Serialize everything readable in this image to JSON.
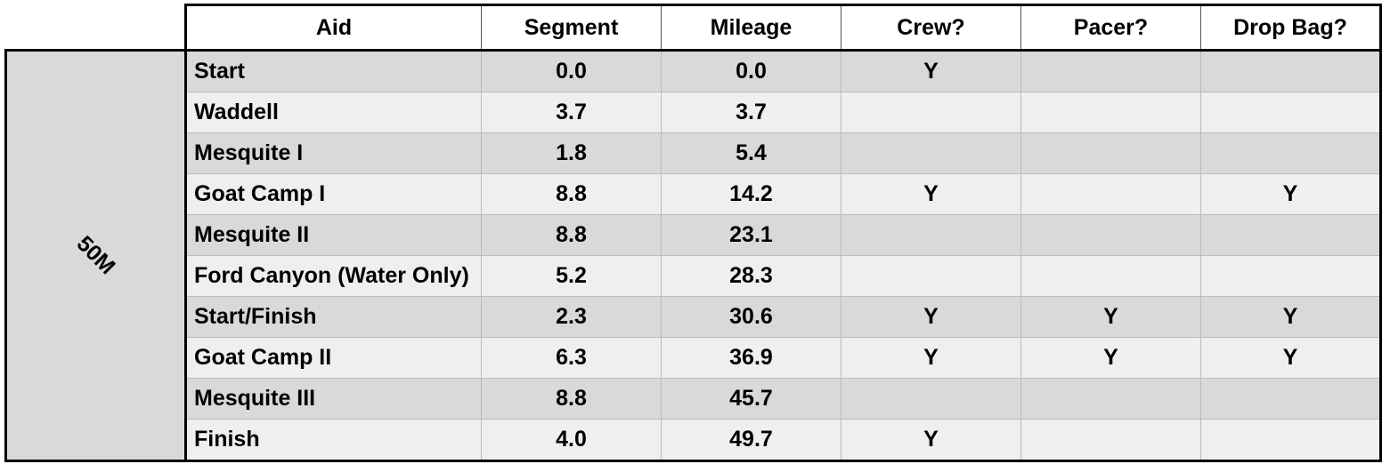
{
  "table": {
    "group": "50M",
    "header": [
      "Aid",
      "Segment",
      "Mileage",
      "Crew?",
      "Pacer?",
      "Drop Bag?"
    ],
    "rows": [
      [
        "Start",
        "0.0",
        "0.0",
        "Y",
        null,
        null
      ],
      [
        "Waddell",
        "3.7",
        "3.7",
        null,
        null,
        null
      ],
      [
        "Mesquite I",
        "1.8",
        "5.4",
        null,
        null,
        null
      ],
      [
        "Goat Camp I",
        "8.8",
        "14.2",
        "Y",
        null,
        "Y"
      ],
      [
        "Mesquite II",
        "8.8",
        "23.1",
        null,
        null,
        null
      ],
      [
        "Ford Canyon (Water Only)",
        "5.2",
        "28.3",
        null,
        null,
        null
      ],
      [
        "Start/Finish",
        "2.3",
        "30.6",
        "Y",
        "Y",
        "Y"
      ],
      [
        "Goat Camp II",
        "6.3",
        "36.9",
        "Y",
        "Y",
        "Y"
      ],
      [
        "Mesquite III",
        "8.8",
        "45.7",
        null,
        null,
        null
      ],
      [
        "Finish",
        "4.0",
        "49.7",
        "Y",
        null,
        null
      ]
    ]
  }
}
